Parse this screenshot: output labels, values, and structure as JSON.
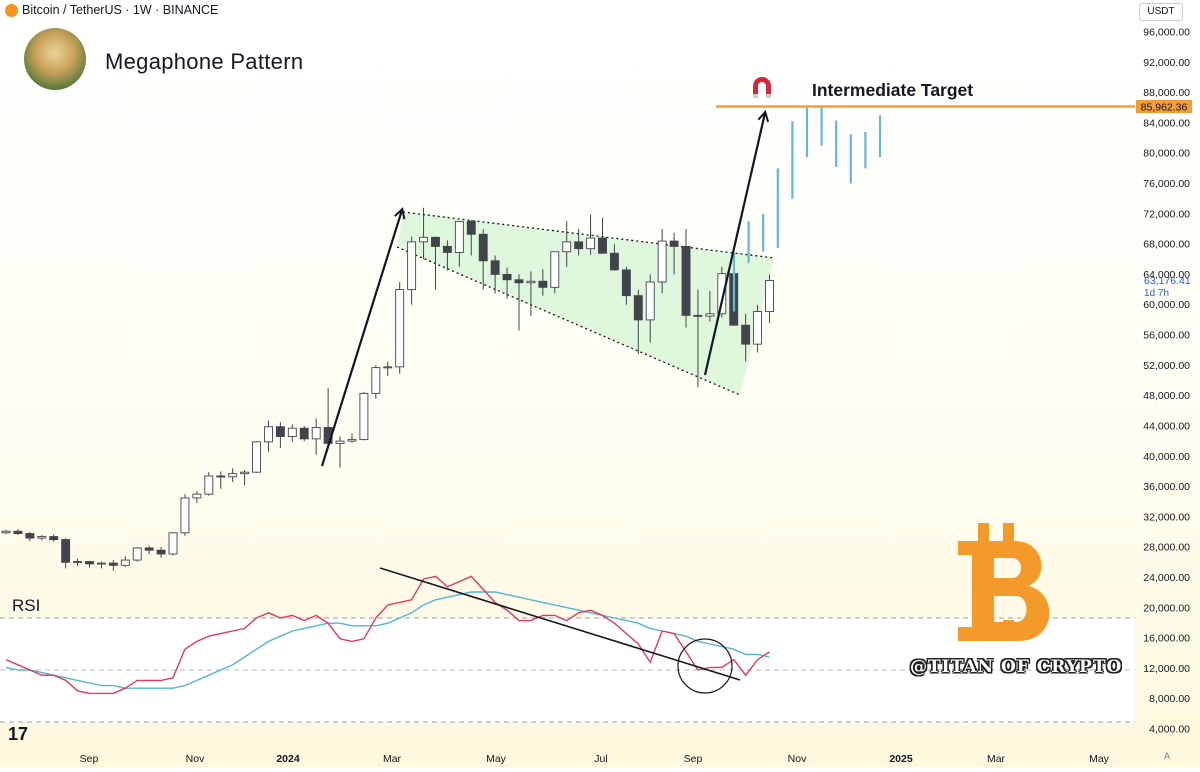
{
  "header": {
    "symbol": "Bitcoin / TetherUS · 1W · BINANCE"
  },
  "title": "Megaphone Pattern",
  "currency_button": "USDT",
  "rsi_label": "RSI",
  "watermark": "@TITAN OF CRYPTO",
  "tv_logo": "17",
  "scale_button": "A",
  "colors": {
    "up": "#ffffff",
    "down": "#42444d",
    "target": "#f29d38",
    "projection": "#63b8d9",
    "rsi": "#e4385e",
    "rsi_ma": "#4fb7d6",
    "wedge_fill": "#d9f5d5",
    "btc_orange": "#f39a2b"
  },
  "chart_data": {
    "type": "candlestick",
    "title": "Megaphone Pattern",
    "y_axis": {
      "min": 4000,
      "max": 96000,
      "ticks": [
        "96,000.00",
        "92,000.00",
        "88,000.00",
        "84,000.00",
        "80,000.00",
        "76,000.00",
        "72,000.00",
        "68,000.00",
        "64,000.00",
        "60,000.00",
        "56,000.00",
        "52,000.00",
        "48,000.00",
        "44,000.00",
        "40,000.00",
        "36,000.00",
        "32,000.00",
        "28,000.00",
        "24,000.00",
        "20,000.00",
        "16,000.00",
        "12,000.00",
        "8,000.00",
        "4,000.00"
      ]
    },
    "x_axis": {
      "labels": [
        "Sep",
        "Nov",
        "2024",
        "Mar",
        "May",
        "Jul",
        "Sep",
        "Nov",
        "2025",
        "Mar",
        "May"
      ]
    },
    "price_labels": [
      {
        "text": "85,962.36",
        "kind": "target"
      },
      {
        "text": "63,176.41",
        "kind": "last"
      },
      {
        "text": "1d 7h",
        "kind": "countdown"
      }
    ],
    "annotations": [
      {
        "text": "Intermediate Target",
        "level": 85962.36
      }
    ],
    "candles": [
      [
        29900,
        30300,
        29700,
        30100
      ],
      [
        30100,
        30400,
        29600,
        29800
      ],
      [
        29800,
        30000,
        28800,
        29200
      ],
      [
        29200,
        29600,
        28900,
        29400
      ],
      [
        29400,
        29700,
        28700,
        29000
      ],
      [
        29000,
        29200,
        25200,
        26000
      ],
      [
        26000,
        26500,
        25500,
        26100
      ],
      [
        26100,
        26200,
        25300,
        25800
      ],
      [
        25800,
        26100,
        25200,
        25900
      ],
      [
        25900,
        26300,
        24900,
        25600
      ],
      [
        25600,
        26800,
        25400,
        26300
      ],
      [
        26300,
        28000,
        26100,
        27900
      ],
      [
        27900,
        28200,
        27100,
        27600
      ],
      [
        27600,
        28000,
        26600,
        27100
      ],
      [
        27100,
        30000,
        26900,
        29900
      ],
      [
        29900,
        35000,
        29500,
        34500
      ],
      [
        34500,
        35400,
        33800,
        35000
      ],
      [
        35000,
        37900,
        34800,
        37400
      ],
      [
        37400,
        38000,
        35700,
        37300
      ],
      [
        37300,
        38400,
        36600,
        37700
      ],
      [
        37700,
        38200,
        36200,
        37900
      ],
      [
        37900,
        42000,
        37800,
        41900
      ],
      [
        41900,
        44700,
        40600,
        43900
      ],
      [
        43900,
        44500,
        41100,
        42600
      ],
      [
        42600,
        44200,
        41900,
        43700
      ],
      [
        43700,
        44000,
        42000,
        42300
      ],
      [
        42300,
        45000,
        40200,
        43800
      ],
      [
        43800,
        49000,
        41300,
        41700
      ],
      [
        41700,
        42600,
        38500,
        42000
      ],
      [
        42000,
        43000,
        41800,
        42200
      ],
      [
        42200,
        48500,
        42100,
        48300
      ],
      [
        48300,
        52000,
        47600,
        51700
      ],
      [
        51700,
        52500,
        50600,
        51800
      ],
      [
        51800,
        63000,
        50900,
        62000
      ],
      [
        62000,
        69000,
        60000,
        68300
      ],
      [
        68300,
        72800,
        66000,
        68900
      ],
      [
        68900,
        69000,
        62000,
        67700
      ],
      [
        67700,
        68500,
        64500,
        66900
      ],
      [
        66900,
        71000,
        65000,
        71000
      ],
      [
        71000,
        71200,
        66500,
        69300
      ],
      [
        69300,
        70000,
        62000,
        65800
      ],
      [
        65800,
        66500,
        61500,
        64000
      ],
      [
        64000,
        64900,
        60800,
        63300
      ],
      [
        63300,
        64000,
        56600,
        62900
      ],
      [
        62900,
        64400,
        58500,
        63100
      ],
      [
        63100,
        64700,
        61200,
        62300
      ],
      [
        62300,
        67000,
        61500,
        67000
      ],
      [
        67000,
        71000,
        65000,
        68300
      ],
      [
        68300,
        70000,
        66500,
        67400
      ],
      [
        67400,
        71900,
        66600,
        68800
      ],
      [
        68800,
        71500,
        67000,
        66800
      ],
      [
        66800,
        68000,
        64500,
        64600
      ],
      [
        64600,
        65000,
        60000,
        61200
      ],
      [
        61200,
        62000,
        53500,
        58000
      ],
      [
        58000,
        64000,
        55000,
        63000
      ],
      [
        63000,
        70000,
        61500,
        68400
      ],
      [
        68400,
        69500,
        64000,
        67700
      ],
      [
        67700,
        70000,
        57000,
        58600
      ],
      [
        58600,
        62000,
        49100,
        58500
      ],
      [
        58500,
        61800,
        57800,
        58800
      ],
      [
        58800,
        65000,
        58300,
        64100
      ],
      [
        64100,
        65100,
        58000,
        57300
      ],
      [
        57300,
        58800,
        52500,
        54800
      ],
      [
        54800,
        60000,
        53700,
        59100
      ],
      [
        59100,
        64000,
        57600,
        63200
      ]
    ],
    "rsi": [
      34,
      32,
      30,
      28,
      28,
      26,
      22,
      21,
      21,
      21,
      23,
      26,
      26,
      26,
      27,
      38,
      41,
      43,
      44,
      45,
      46,
      50,
      52,
      50,
      51,
      49,
      51,
      48,
      42,
      41,
      42,
      50,
      55,
      56,
      57,
      65,
      66,
      62,
      64,
      66,
      61,
      56,
      53,
      49,
      49,
      51,
      51,
      49,
      52,
      53,
      51,
      48,
      44,
      40,
      33,
      45,
      44,
      37,
      30,
      31,
      31,
      34,
      28,
      34,
      37
    ],
    "rsi_ma": [
      31,
      30,
      30,
      29,
      28,
      27,
      26,
      25,
      24,
      24,
      23,
      23,
      23,
      23,
      23,
      24,
      26,
      28,
      30,
      32,
      35,
      38,
      41,
      43,
      45,
      46,
      47,
      48,
      48,
      47,
      47,
      47,
      48,
      50,
      52,
      55,
      57,
      58,
      59,
      60,
      60,
      60,
      59,
      58,
      57,
      56,
      55,
      54,
      53,
      52,
      51,
      50,
      49,
      48,
      46,
      45,
      44,
      43,
      41,
      40,
      39,
      38,
      36,
      36,
      35
    ],
    "projection": [
      [
        59100,
        66800
      ],
      [
        65500,
        71000
      ],
      [
        67000,
        72000
      ],
      [
        67500,
        78000
      ],
      [
        74000,
        84200
      ],
      [
        79500,
        86200
      ],
      [
        81000,
        86100
      ],
      [
        78200,
        84300
      ],
      [
        76000,
        82500
      ],
      [
        78000,
        82800
      ],
      [
        79500,
        85000
      ]
    ]
  }
}
